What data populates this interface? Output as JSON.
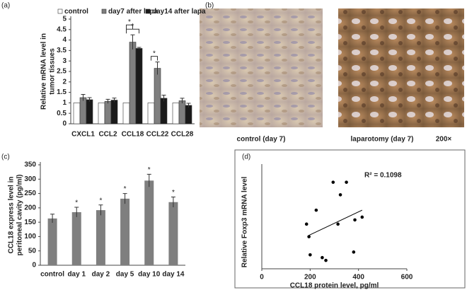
{
  "chart_data": [
    {
      "type": "grouped-bar",
      "panel_label": "(a)",
      "ylabel": [
        "Relative mRNA level in",
        "tumor tissues"
      ],
      "categories": [
        "CXCL1",
        "CCL2",
        "CCL18",
        "CCL22",
        "CCL28"
      ],
      "series": [
        {
          "name": "control",
          "color": "#ffffff",
          "values": [
            1,
            1,
            1,
            1,
            1
          ],
          "errors": [
            0,
            0,
            0,
            0,
            0
          ]
        },
        {
          "name": "day7 after lapa",
          "color": "#7f7f7f",
          "values": [
            1.25,
            1.07,
            3.9,
            2.65,
            1.1
          ],
          "errors": [
            0.15,
            0.1,
            0.35,
            0.3,
            0.12
          ]
        },
        {
          "name": "day14 after lapa",
          "color": "#1a1a1a",
          "values": [
            1.15,
            1.13,
            3.6,
            1.22,
            0.88
          ],
          "errors": [
            0.1,
            0.1,
            0.05,
            0.15,
            0.1
          ]
        }
      ],
      "annotations": [
        {
          "text": "*",
          "category": "CCL18",
          "from": "control",
          "to": "day14 after lapa"
        },
        {
          "text": "*",
          "category": "CCL18",
          "from": "control",
          "to": "day7 after lapa"
        },
        {
          "text": "*",
          "category": "CCL22",
          "from": "control",
          "to": "day7 after lapa"
        }
      ],
      "ylim": [
        0,
        5
      ],
      "yticks": [
        0,
        0.5,
        1,
        1.5,
        2,
        2.5,
        3,
        3.5,
        4,
        4.5,
        5
      ],
      "legend": "top"
    },
    {
      "type": "bar",
      "panel_label": "(c)",
      "ylabel": [
        "CCL18 express level in",
        "peritoneal cavity (pg/ml)"
      ],
      "categories": [
        "control",
        "day 1",
        "day 2",
        "day 5",
        "day 10",
        "day 14"
      ],
      "values": [
        163,
        185,
        192,
        232,
        295,
        220
      ],
      "errors": [
        15,
        17,
        18,
        18,
        22,
        18
      ],
      "point_labels": [
        null,
        "*",
        "*",
        "*",
        "*",
        "*"
      ],
      "color": "#7f7f7f",
      "ylim": [
        0,
        350
      ],
      "yticks": [
        0,
        50,
        100,
        150,
        200,
        250,
        300,
        350
      ]
    },
    {
      "type": "scatter",
      "panel_label": "(d)",
      "xlabel": "CCL18 protein level, pg/ml",
      "ylabel": "Relative Foxp3 mRNA level",
      "x": [
        195,
        200,
        185,
        225,
        250,
        265,
        295,
        315,
        325,
        350,
        380,
        385,
        415
      ],
      "y": [
        2.3,
        1.0,
        3.2,
        4.2,
        0.8,
        0.6,
        6.2,
        3.2,
        5.3,
        6.2,
        1.2,
        3.5,
        3.7
      ],
      "trendline": {
        "x": [
          195,
          415
        ],
        "y": [
          2.4,
          4.2
        ]
      },
      "annotation": "R² = 0.1098",
      "color": "#000000",
      "xlim": [
        0,
        600
      ],
      "xticks": [
        0,
        200,
        400,
        600
      ],
      "ylim": [
        0,
        7.5
      ]
    }
  ],
  "image_panel": {
    "panel_label": "(b)",
    "captions": [
      "control (day 7)",
      "laparotomy (day 7)"
    ],
    "magnification": "200×"
  }
}
